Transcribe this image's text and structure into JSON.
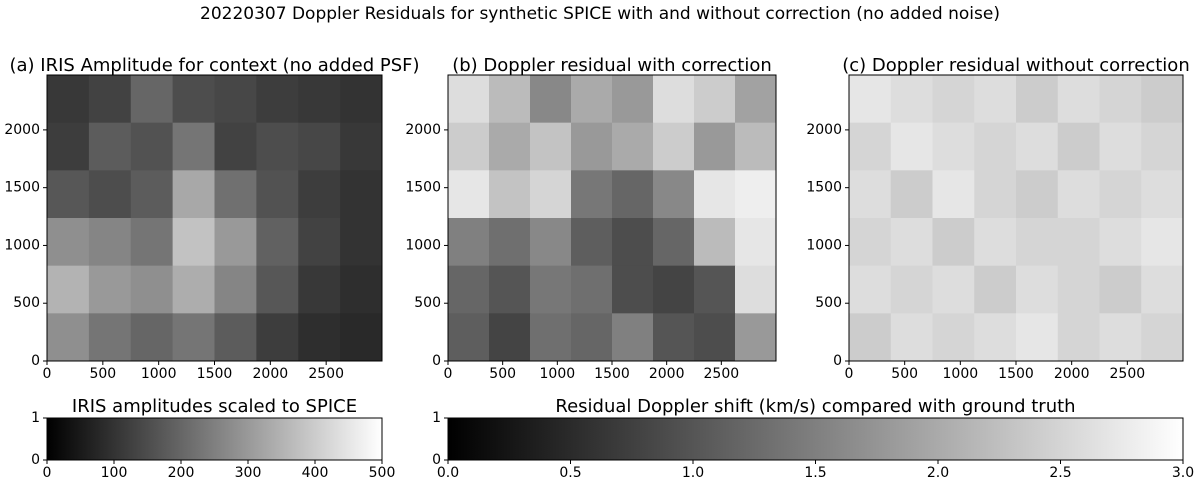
{
  "title": "20220307 Doppler Residuals for synthetic SPICE with and without correction (no added noise)",
  "chart_data": [
    {
      "type": "heatmap",
      "title": "(a) IRIS Amplitude for context (no added PSF)",
      "xlim": [
        0,
        3000
      ],
      "ylim": [
        0,
        2475
      ],
      "xticks": [
        0,
        500,
        1000,
        1500,
        2000,
        2500
      ],
      "yticks": [
        0,
        500,
        1000,
        1500,
        2000
      ],
      "zlim": [
        0,
        500
      ],
      "colormap": [
        "#000000",
        "#ffffff"
      ],
      "z": [
        [
          110,
          130,
          200,
          150,
          140,
          120,
          110,
          100
        ],
        [
          120,
          180,
          160,
          230,
          130,
          150,
          140,
          110
        ],
        [
          170,
          150,
          180,
          330,
          220,
          160,
          120,
          100
        ],
        [
          280,
          260,
          230,
          380,
          300,
          190,
          130,
          100
        ],
        [
          350,
          300,
          280,
          340,
          260,
          170,
          110,
          90
        ],
        [
          280,
          230,
          200,
          230,
          180,
          120,
          90,
          80
        ]
      ]
    },
    {
      "type": "heatmap",
      "title": "(b) Doppler residual with correction",
      "xlim": [
        0,
        3000
      ],
      "ylim": [
        0,
        2475
      ],
      "xticks": [
        0,
        500,
        1000,
        1500,
        2000,
        2500
      ],
      "yticks": [
        0,
        500,
        1000,
        1500,
        2000
      ],
      "zlim": [
        0,
        3
      ],
      "colormap": [
        "#000000",
        "#ffffff"
      ],
      "z": [
        [
          2.6,
          2.2,
          1.6,
          2.0,
          1.8,
          2.6,
          2.4,
          1.9
        ],
        [
          2.4,
          2.0,
          2.3,
          1.8,
          2.0,
          2.4,
          1.8,
          2.2
        ],
        [
          2.7,
          2.3,
          2.5,
          1.4,
          1.2,
          1.6,
          2.7,
          2.8
        ],
        [
          1.5,
          1.3,
          1.6,
          1.1,
          0.9,
          1.2,
          2.2,
          2.7
        ],
        [
          1.2,
          1.0,
          1.4,
          1.3,
          0.9,
          0.8,
          1.0,
          2.6
        ],
        [
          1.1,
          0.8,
          1.3,
          1.2,
          1.5,
          1.0,
          0.9,
          1.8
        ]
      ]
    },
    {
      "type": "heatmap",
      "title": "(c) Doppler residual without correction",
      "xlim": [
        0,
        3000
      ],
      "ylim": [
        0,
        2475
      ],
      "xticks": [
        0,
        500,
        1000,
        1500,
        2000,
        2500
      ],
      "yticks": [
        0,
        500,
        1000,
        1500,
        2000
      ],
      "zlim": [
        0,
        3
      ],
      "colormap": [
        "#000000",
        "#ffffff"
      ],
      "z": [
        [
          2.7,
          2.6,
          2.5,
          2.6,
          2.4,
          2.6,
          2.5,
          2.4
        ],
        [
          2.5,
          2.7,
          2.6,
          2.5,
          2.6,
          2.4,
          2.6,
          2.5
        ],
        [
          2.6,
          2.4,
          2.7,
          2.5,
          2.4,
          2.6,
          2.5,
          2.6
        ],
        [
          2.5,
          2.6,
          2.4,
          2.6,
          2.5,
          2.5,
          2.6,
          2.7
        ],
        [
          2.6,
          2.5,
          2.6,
          2.4,
          2.6,
          2.5,
          2.4,
          2.6
        ],
        [
          2.4,
          2.6,
          2.5,
          2.6,
          2.7,
          2.5,
          2.6,
          2.5
        ]
      ]
    },
    {
      "type": "colorbar",
      "title": "IRIS amplitudes scaled to SPICE",
      "xlim": [
        0,
        500
      ],
      "xticks": [
        0,
        100,
        200,
        300,
        400,
        500
      ],
      "ylim": [
        0,
        1
      ],
      "yticks": [
        0,
        1
      ],
      "colormap": [
        "#000000",
        "#ffffff"
      ]
    },
    {
      "type": "colorbar",
      "title": "Residual Doppler shift (km/s) compared with ground truth",
      "xlim": [
        0,
        3
      ],
      "xticks": [
        {
          "value": 0,
          "label": "0.0"
        },
        {
          "value": 0.5,
          "label": "0.5"
        },
        {
          "value": 1,
          "label": "1.0"
        },
        {
          "value": 1.5,
          "label": "1.5"
        },
        {
          "value": 2,
          "label": "2.0"
        },
        {
          "value": 2.5,
          "label": "2.5"
        },
        {
          "value": 3,
          "label": "3.0"
        }
      ],
      "ylim": [
        0,
        1
      ],
      "yticks": [
        0,
        1
      ],
      "colormap": [
        "#000000",
        "#ffffff"
      ]
    }
  ]
}
